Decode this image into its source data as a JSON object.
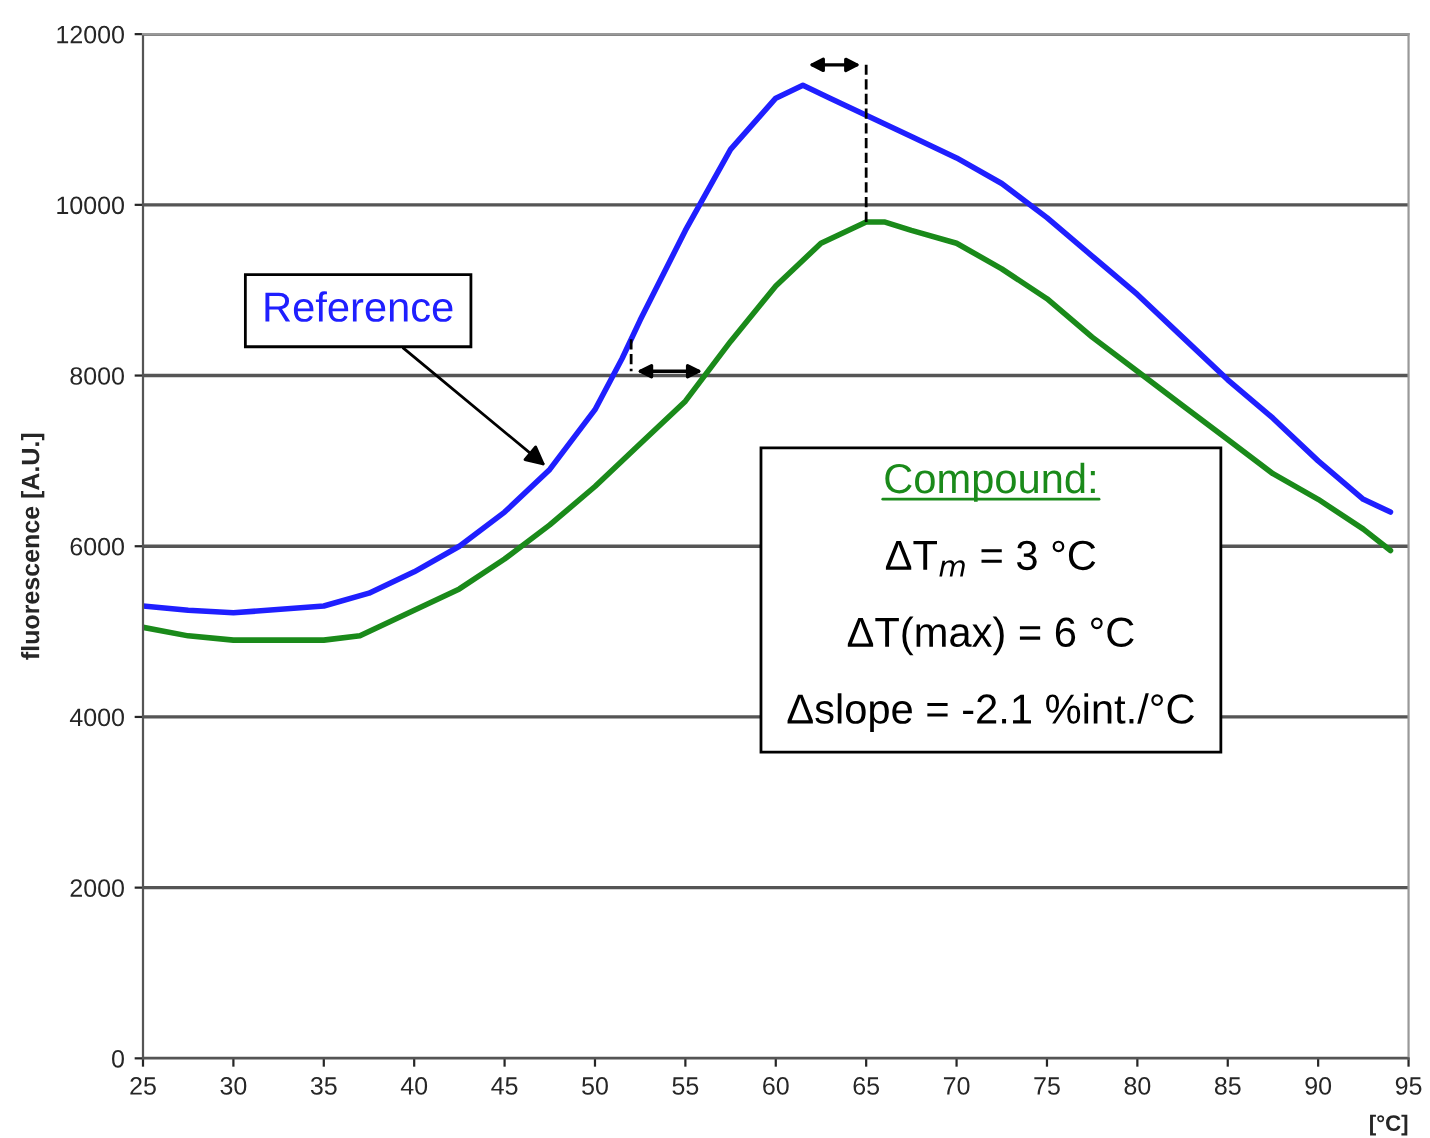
{
  "chart_data": {
    "type": "line",
    "xlabel": "[°C]",
    "ylabel": "fluorescence [A.U.]",
    "xlim": [
      25,
      95
    ],
    "xticks": [
      25,
      30,
      35,
      40,
      45,
      50,
      55,
      60,
      65,
      70,
      75,
      80,
      85,
      90,
      95
    ],
    "ylim": [
      0,
      12000
    ],
    "yticks": [
      0,
      2000,
      4000,
      6000,
      8000,
      10000,
      12000
    ],
    "grid": "y",
    "legend": false,
    "marker": "none",
    "line_style": "solid",
    "series": [
      {
        "color": "#1f1fff",
        "x": [
          25,
          27.5,
          30,
          35,
          37.5,
          40,
          42.5,
          45,
          47.5,
          50,
          51.5,
          52.5,
          55,
          57.5,
          60,
          61.5,
          63,
          65,
          67.5,
          70,
          72.5,
          75,
          77.5,
          80,
          82.5,
          85,
          87.5,
          90,
          92.5,
          94
        ],
        "values": [
          5300,
          5250,
          5220,
          5300,
          5450,
          5700,
          6000,
          6400,
          6900,
          7600,
          8200,
          8650,
          9700,
          10650,
          11250,
          11400,
          11250,
          11050,
          10800,
          10550,
          10250,
          9850,
          9400,
          8950,
          8450,
          7950,
          7500,
          7000,
          6550,
          6400
        ]
      },
      {
        "color": "#1a8a1a",
        "x": [
          25,
          27.5,
          30,
          35,
          37,
          40,
          42.5,
          45,
          47.5,
          50,
          52.5,
          55,
          57.5,
          60,
          62.5,
          65,
          66,
          67.5,
          70,
          72.5,
          75,
          77.5,
          80,
          82.5,
          85,
          87.5,
          90,
          92.5,
          94
        ],
        "values": [
          5050,
          4950,
          4900,
          4900,
          4950,
          5250,
          5500,
          5850,
          6250,
          6700,
          7200,
          7700,
          8400,
          9050,
          9550,
          9800,
          9800,
          9700,
          9550,
          9250,
          8900,
          8450,
          8050,
          7650,
          7250,
          6850,
          6550,
          6200,
          5950
        ]
      }
    ],
    "annotations": [
      {
        "text": "Reference",
        "x": 47.5,
        "y": 6900
      },
      "Compound:",
      "ΔT$_{m}$ = 3 °C",
      "ΔT(max) = 6 °C",
      "Δslope = -2.1 %int./°C"
    ]
  }
}
